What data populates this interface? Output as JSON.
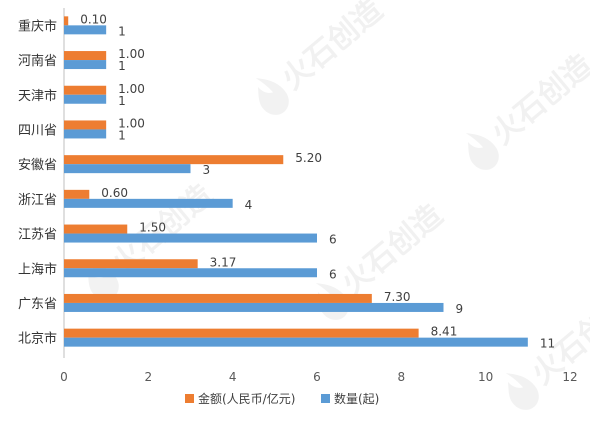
{
  "chart_data": {
    "type": "bar",
    "orientation": "horizontal",
    "categories": [
      "重庆市",
      "河南省",
      "天津市",
      "四川省",
      "安徽省",
      "浙江省",
      "江苏省",
      "上海市",
      "广东省",
      "北京市"
    ],
    "series": [
      {
        "name": "金额(人民币/亿元)",
        "color": "#ED7D31",
        "values": [
          0.1,
          1.0,
          1.0,
          1.0,
          5.2,
          0.6,
          1.5,
          3.17,
          7.3,
          8.41
        ],
        "labels": [
          "0.10",
          "1.00",
          "1.00",
          "1.00",
          "5.20",
          "0.60",
          "1.50",
          "3.17",
          "7.30",
          "8.41"
        ]
      },
      {
        "name": "数量(起)",
        "color": "#5B9BD5",
        "values": [
          1,
          1,
          1,
          1,
          3,
          4,
          6,
          6,
          9,
          11
        ],
        "labels": [
          "1",
          "1",
          "1",
          "1",
          "3",
          "4",
          "6",
          "6",
          "9",
          "11"
        ]
      }
    ],
    "xlim": [
      0,
      12
    ],
    "xticks": [
      "0",
      "2",
      "4",
      "6",
      "8",
      "10",
      "12"
    ],
    "grid": false,
    "legend_position": "bottom"
  },
  "watermark": {
    "text": "火石创造",
    "icon": "flame-logo-icon"
  }
}
